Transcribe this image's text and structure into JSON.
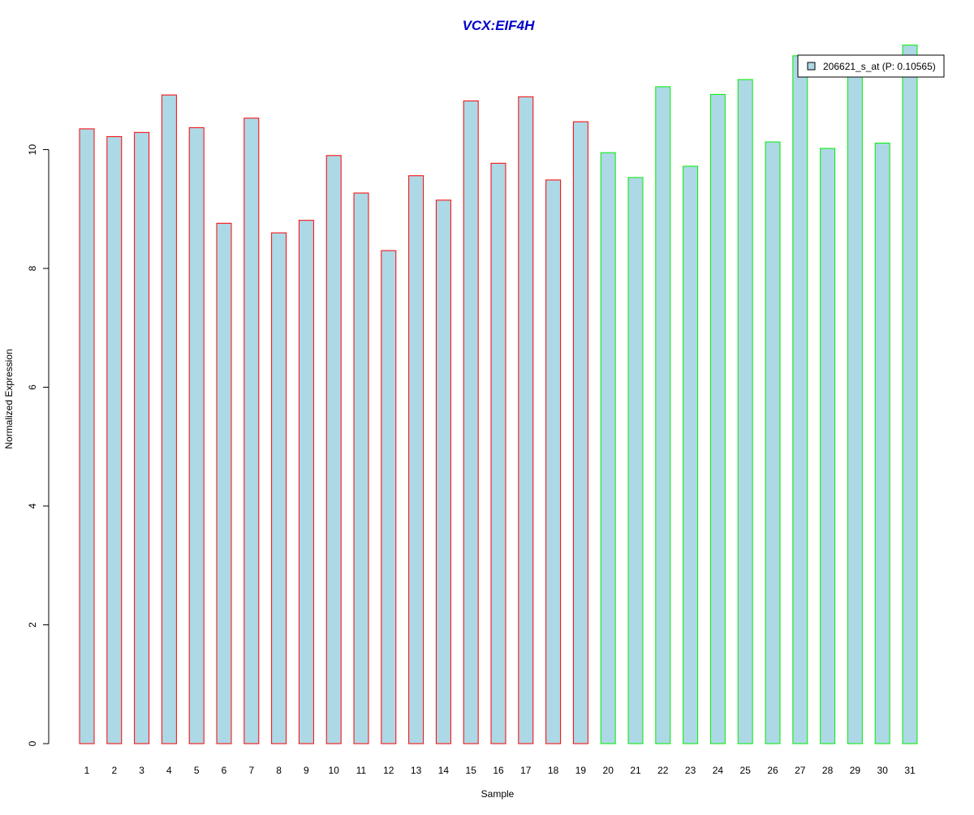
{
  "chart_data": {
    "type": "bar",
    "title": "VCX:EIF4H",
    "xlabel": "Sample",
    "ylabel": "Normalized Expression",
    "categories": [
      "1",
      "2",
      "3",
      "4",
      "5",
      "6",
      "7",
      "8",
      "9",
      "10",
      "11",
      "12",
      "13",
      "14",
      "15",
      "16",
      "17",
      "18",
      "19",
      "20",
      "21",
      "22",
      "23",
      "24",
      "25",
      "26",
      "27",
      "28",
      "29",
      "30",
      "31"
    ],
    "series": [
      {
        "name": "206621_s_at (P: 0.10565)",
        "values": [
          10.35,
          10.22,
          10.29,
          10.92,
          10.37,
          8.76,
          10.53,
          8.6,
          8.81,
          9.9,
          9.27,
          8.3,
          9.56,
          9.15,
          10.82,
          9.77,
          10.89,
          9.49,
          10.47,
          9.95,
          9.53,
          11.06,
          9.72,
          10.93,
          11.18,
          10.13,
          11.58,
          10.02,
          11.4,
          10.11,
          11.76
        ]
      }
    ],
    "groups": [
      {
        "samples_from": 1,
        "samples_to": 19,
        "border_color": "#ff0000"
      },
      {
        "samples_from": 20,
        "samples_to": 31,
        "border_color": "#00ee00"
      }
    ],
    "bar_fill": "#add8e6",
    "title_color": "#0000cc",
    "yticks": [
      0,
      2,
      4,
      6,
      8,
      10
    ],
    "ylim": [
      0,
      11.8
    ],
    "grid": false,
    "legend_position": "top-right"
  }
}
